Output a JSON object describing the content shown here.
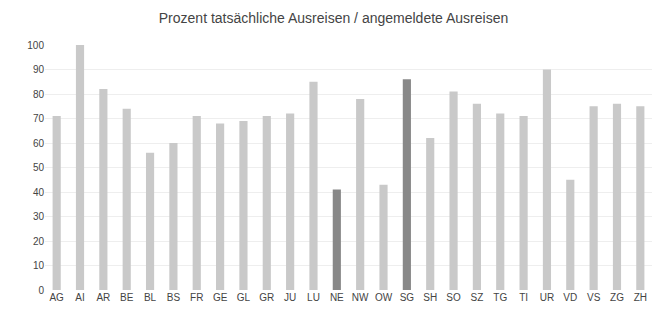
{
  "chart_data": {
    "type": "bar",
    "title": "Prozent tatsächliche Ausreisen / angemeldete Ausreisen",
    "categories": [
      "AG",
      "AI",
      "AR",
      "BE",
      "BL",
      "BS",
      "FR",
      "GE",
      "GL",
      "GR",
      "JU",
      "LU",
      "NE",
      "NW",
      "OW",
      "SG",
      "SH",
      "SO",
      "SZ",
      "TG",
      "TI",
      "UR",
      "VD",
      "VS",
      "ZG",
      "ZH"
    ],
    "values": [
      71,
      100,
      82,
      74,
      56,
      60,
      71,
      68,
      69,
      71,
      72,
      85,
      41,
      78,
      43,
      86,
      62,
      81,
      76,
      72,
      71,
      90,
      45,
      75,
      76,
      75
    ],
    "colors": [
      "#c9c9c9",
      "#c9c9c9",
      "#c9c9c9",
      "#c9c9c9",
      "#c9c9c9",
      "#c9c9c9",
      "#c9c9c9",
      "#c9c9c9",
      "#c9c9c9",
      "#c9c9c9",
      "#c9c9c9",
      "#c9c9c9",
      "#888888",
      "#c9c9c9",
      "#c9c9c9",
      "#888888",
      "#c9c9c9",
      "#c9c9c9",
      "#c9c9c9",
      "#c9c9c9",
      "#c9c9c9",
      "#c9c9c9",
      "#c9c9c9",
      "#c9c9c9",
      "#c9c9c9",
      "#c9c9c9"
    ],
    "ylim": [
      0,
      100
    ],
    "yticks": [
      0,
      10,
      20,
      30,
      40,
      50,
      60,
      70,
      80,
      90,
      100
    ],
    "grid": true
  }
}
